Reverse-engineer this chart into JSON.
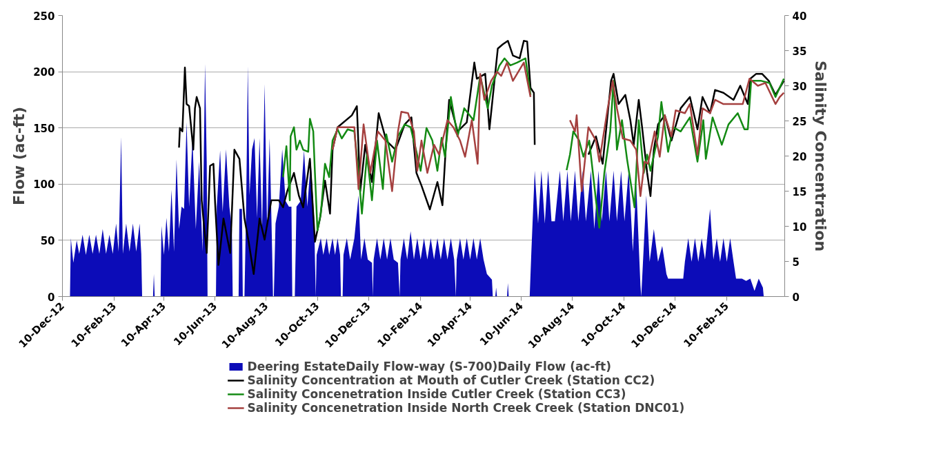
{
  "chart_data": {
    "type": "line",
    "xlim": [
      "2012-12-10",
      "2015-04-20"
    ],
    "xticks": [
      {
        "value": "2012-12-10",
        "label": "10-Dec-12"
      },
      {
        "value": "2013-02-10",
        "label": "10-Feb-13"
      },
      {
        "value": "2013-04-10",
        "label": "10-Apr-13"
      },
      {
        "value": "2013-06-10",
        "label": "10-Jun-13"
      },
      {
        "value": "2013-08-10",
        "label": "10-Aug-13"
      },
      {
        "value": "2013-10-10",
        "label": "10-Oct-13"
      },
      {
        "value": "2013-12-10",
        "label": "10-Dec-13"
      },
      {
        "value": "2014-02-10",
        "label": "10-Feb-14"
      },
      {
        "value": "2014-04-10",
        "label": "10-Apr-14"
      },
      {
        "value": "2014-06-10",
        "label": "10-Jun-14"
      },
      {
        "value": "2014-08-10",
        "label": "10-Aug-14"
      },
      {
        "value": "2014-10-10",
        "label": "10-Oct-14"
      },
      {
        "value": "2014-12-10",
        "label": "10-Dec-14"
      },
      {
        "value": "2015-02-10",
        "label": "10-Feb-15"
      }
    ],
    "ylim": [
      0,
      250
    ],
    "yticks": [
      0,
      50,
      100,
      150,
      200,
      250
    ],
    "y2lim": [
      0,
      40
    ],
    "y2ticks": [
      0,
      5,
      10,
      15,
      20,
      25,
      30,
      35,
      40
    ],
    "ylabel": "Flow (ac-ft)",
    "y2label": "Salinity Concentration",
    "grid": "y",
    "legend": "bottom",
    "series": [
      {
        "name": "Deering EstateDaily Flow-way (S-700)Daily Flow (ac-ft)",
        "type": "area",
        "color": "#0c0cb8",
        "x": [
          "2012-12-19",
          "2012-12-20",
          "2012-12-23",
          "2012-12-27",
          "2012-12-30",
          "2013-01-03",
          "2013-01-07",
          "2013-01-11",
          "2013-01-15",
          "2013-01-19",
          "2013-01-23",
          "2013-01-27",
          "2013-01-31",
          "2013-02-04",
          "2013-02-08",
          "2013-02-12",
          "2013-02-15",
          "2013-02-18",
          "2013-02-20",
          "2013-02-24",
          "2013-02-28",
          "2013-03-04",
          "2013-03-08",
          "2013-03-12",
          "2013-03-14",
          "2013-03-15",
          "2013-03-28",
          "2013-03-29",
          "2013-03-30",
          "2013-04-06",
          "2013-04-07",
          "2013-04-10",
          "2013-04-13",
          "2013-04-16",
          "2013-04-19",
          "2013-04-22",
          "2013-04-25",
          "2013-04-28",
          "2013-05-01",
          "2013-05-04",
          "2013-05-07",
          "2013-05-10",
          "2013-05-14",
          "2013-05-18",
          "2013-05-22",
          "2013-05-26",
          "2013-05-29",
          "2013-05-31",
          "2013-06-01",
          "2013-06-11",
          "2013-06-12",
          "2013-06-16",
          "2013-06-19",
          "2013-06-23",
          "2013-06-27",
          "2013-06-30",
          "2013-07-01",
          "2013-07-08",
          "2013-07-09",
          "2013-07-12",
          "2013-07-13",
          "2013-07-15",
          "2013-07-17",
          "2013-07-19",
          "2013-07-21",
          "2013-07-24",
          "2013-07-27",
          "2013-07-30",
          "2013-08-02",
          "2013-08-05",
          "2013-08-08",
          "2013-08-11",
          "2013-08-14",
          "2013-08-17",
          "2013-08-18",
          "2013-08-19",
          "2013-08-21",
          "2013-08-25",
          "2013-08-29",
          "2013-09-02",
          "2013-09-06",
          "2013-09-09",
          "2013-09-10",
          "2013-09-13",
          "2013-09-15",
          "2013-09-20",
          "2013-09-24",
          "2013-09-28",
          "2013-10-02",
          "2013-10-06",
          "2013-10-08",
          "2013-10-09",
          "2013-10-14",
          "2013-10-17",
          "2013-10-21",
          "2013-10-24",
          "2013-10-28",
          "2013-10-31",
          "2013-11-03",
          "2013-11-06",
          "2013-11-07",
          "2013-11-09",
          "2013-11-10",
          "2013-11-14",
          "2013-11-18",
          "2013-11-23",
          "2013-11-28",
          "2013-12-01",
          "2013-12-05",
          "2013-12-09",
          "2013-12-14",
          "2013-12-15",
          "2013-12-16",
          "2013-12-20",
          "2013-12-24",
          "2013-12-28",
          "2014-01-01",
          "2014-01-05",
          "2014-01-09",
          "2014-01-14",
          "2014-01-16",
          "2014-01-17",
          "2014-01-21",
          "2014-01-25",
          "2014-01-29",
          "2014-02-02",
          "2014-02-06",
          "2014-02-10",
          "2014-02-14",
          "2014-02-18",
          "2014-02-22",
          "2014-02-26",
          "2014-03-02",
          "2014-03-06",
          "2014-03-10",
          "2014-03-14",
          "2014-03-18",
          "2014-03-22",
          "2014-03-24",
          "2014-03-25",
          "2014-03-29",
          "2014-04-02",
          "2014-04-06",
          "2014-04-10",
          "2014-04-14",
          "2014-04-18",
          "2014-04-22",
          "2014-04-26",
          "2014-04-30",
          "2014-05-06",
          "2014-05-07",
          "2014-05-10",
          "2014-05-11",
          "2014-05-12",
          "2014-05-24",
          "2014-05-25",
          "2014-05-26",
          "2014-06-20",
          "2014-06-22",
          "2014-06-26",
          "2014-06-30",
          "2014-07-04",
          "2014-07-08",
          "2014-07-12",
          "2014-07-16",
          "2014-07-20",
          "2014-07-26",
          "2014-07-30",
          "2014-08-04",
          "2014-08-08",
          "2014-08-13",
          "2014-08-17",
          "2014-08-22",
          "2014-08-26",
          "2014-09-01",
          "2014-09-05",
          "2014-09-10",
          "2014-09-14",
          "2014-09-19",
          "2014-09-23",
          "2014-09-28",
          "2014-10-02",
          "2014-10-07",
          "2014-10-11",
          "2014-10-16",
          "2014-10-21",
          "2014-10-25",
          "2014-10-30",
          "2014-10-31",
          "2014-11-02",
          "2014-11-06",
          "2014-11-10",
          "2014-11-15",
          "2014-11-20",
          "2014-11-25",
          "2014-11-30",
          "2014-12-02",
          "2014-12-10",
          "2014-12-20",
          "2014-12-22",
          "2014-12-26",
          "2014-12-30",
          "2015-01-03",
          "2015-01-07",
          "2015-01-11",
          "2015-01-15",
          "2015-01-21",
          "2015-01-25",
          "2015-01-29",
          "2015-02-02",
          "2015-02-06",
          "2015-02-10",
          "2015-02-14",
          "2015-02-18",
          "2015-02-21",
          "2015-02-28",
          "2015-03-05",
          "2015-03-10",
          "2015-03-15",
          "2015-03-20",
          "2015-03-25",
          "2015-03-26"
        ],
        "values": [
          0,
          52,
          30,
          50,
          38,
          55,
          37,
          55,
          38,
          55,
          38,
          60,
          38,
          55,
          38,
          65,
          40,
          142,
          38,
          65,
          40,
          65,
          40,
          65,
          38,
          0,
          0,
          20,
          0,
          0,
          63,
          37,
          70,
          40,
          95,
          40,
          122,
          60,
          80,
          78,
          155,
          80,
          140,
          60,
          120,
          40,
          207,
          120,
          0,
          0,
          80,
          130,
          75,
          131,
          80,
          60,
          0,
          0,
          78,
          78,
          0,
          0,
          80,
          205,
          90,
          131,
          141,
          70,
          141,
          60,
          189,
          60,
          141,
          40,
          0,
          0,
          65,
          80,
          131,
          85,
          80,
          80,
          0,
          0,
          80,
          85,
          130,
          80,
          121,
          70,
          0,
          37,
          52,
          37,
          52,
          37,
          52,
          37,
          52,
          37,
          0,
          0,
          37,
          52,
          33,
          52,
          90,
          33,
          52,
          33,
          30,
          0,
          33,
          52,
          33,
          52,
          33,
          52,
          33,
          30,
          0,
          33,
          52,
          33,
          58,
          33,
          52,
          33,
          52,
          33,
          52,
          33,
          52,
          33,
          52,
          33,
          52,
          33,
          0,
          33,
          52,
          33,
          52,
          33,
          52,
          33,
          52,
          33,
          20,
          15,
          0,
          0,
          8,
          0,
          0,
          12,
          0,
          0,
          40,
          112,
          65,
          112,
          65,
          112,
          67,
          67,
          112,
          67,
          112,
          67,
          112,
          67,
          112,
          67,
          112,
          60,
          112,
          67,
          112,
          67,
          112,
          67,
          112,
          67,
          112,
          40,
          100,
          10,
          0,
          30,
          90,
          31,
          60,
          31,
          45,
          20,
          16,
          16,
          16,
          31,
          52,
          31,
          52,
          31,
          52,
          33,
          78,
          33,
          52,
          31,
          52,
          31,
          52,
          31,
          16,
          16,
          14,
          16,
          5,
          16,
          8,
          0
        ]
      },
      {
        "name": "Salinity Concentration at Mouth of Cutler Creek (Station CC2)",
        "axis": "y2",
        "color": "#000000",
        "x": [
          "2013-04-28",
          "2013-04-29",
          "2013-05-02",
          "2013-05-05",
          "2013-05-07",
          "2013-05-10",
          "2013-05-15",
          "2013-05-17",
          "2013-05-19",
          "2013-05-23",
          "2013-05-25",
          "2013-05-28",
          "2013-05-31",
          "2013-06-04",
          "2013-06-08",
          "2013-06-10",
          "2013-06-14",
          "2013-06-20",
          "2013-06-28",
          "2013-07-03",
          "2013-07-09",
          "2013-07-15",
          "2013-07-20",
          "2013-07-26",
          "2013-08-02",
          "2013-08-08",
          "2013-08-16",
          "2013-08-25",
          "2013-08-30",
          "2013-09-04",
          "2013-09-12",
          "2013-09-18",
          "2013-09-23",
          "2013-10-01",
          "2013-10-07",
          "2013-10-13",
          "2013-10-19",
          "2013-10-25",
          "2013-10-28",
          "2013-11-03",
          "2013-11-20",
          "2013-11-26",
          "2013-11-30",
          "2013-12-06",
          "2013-12-14",
          "2013-12-22",
          "2013-12-31",
          "2014-01-11",
          "2014-01-22",
          "2014-01-30",
          "2014-02-05",
          "2014-02-11",
          "2014-02-21",
          "2014-03-02",
          "2014-03-08",
          "2014-03-12",
          "2014-03-16",
          "2014-03-26",
          "2014-04-06",
          "2014-04-15",
          "2014-04-18",
          "2014-04-28",
          "2014-05-03",
          "2014-05-09",
          "2014-05-13",
          "2014-05-19",
          "2014-05-25",
          "2014-05-31",
          "2014-06-08",
          "2014-06-13",
          "2014-06-17",
          "2014-06-21",
          "2014-06-25",
          "2014-06-26",
          "2014-07-15",
          "2014-08-29",
          "2014-09-07",
          "2014-09-15",
          "2014-09-25",
          "2014-09-28",
          "2014-10-04",
          "2014-10-12",
          "2014-10-18",
          "2014-10-22",
          "2014-10-28",
          "2014-11-01",
          "2014-11-07",
          "2014-11-11",
          "2014-11-15",
          "2014-11-20",
          "2014-11-28",
          "2014-12-06",
          "2014-12-17",
          "2014-12-28",
          "2015-01-06",
          "2015-01-12",
          "2015-01-21",
          "2015-01-27",
          "2015-02-06",
          "2015-02-18",
          "2015-02-26",
          "2015-03-07",
          "2015-03-10",
          "2015-03-17",
          "2015-03-24",
          "2015-04-01",
          "2015-04-09",
          "2015-04-19"
        ],
        "values": [
          21.2,
          24.0,
          23.5,
          32.6,
          27.4,
          27.1,
          20.9,
          26.8,
          28.4,
          26.8,
          13.7,
          9.8,
          6.2,
          18.6,
          18.9,
          13.3,
          4.5,
          11.1,
          6.2,
          20.9,
          19.6,
          11.1,
          7.8,
          3.2,
          11.1,
          8.1,
          13.7,
          13.7,
          12.7,
          15.0,
          17.6,
          14.3,
          12.7,
          19.6,
          7.8,
          11.1,
          16.5,
          11.8,
          20.9,
          24.1,
          25.8,
          27.1,
          15.0,
          21.6,
          16.3,
          26.1,
          22.2,
          20.9,
          24.5,
          25.5,
          17.6,
          15.8,
          12.4,
          16.3,
          13.0,
          21.2,
          28.0,
          23.5,
          24.8,
          33.3,
          31.0,
          31.7,
          23.8,
          30.7,
          35.3,
          35.9,
          36.4,
          34.3,
          33.9,
          36.4,
          36.3,
          29.7,
          29.0,
          21.6,
          null,
          20.2,
          22.8,
          18.9,
          30.7,
          31.7,
          27.4,
          28.7,
          25.1,
          21.6,
          28.0,
          24.1,
          17.6,
          14.3,
          20.9,
          24.5,
          25.8,
          22.2,
          26.8,
          28.4,
          23.8,
          28.4,
          26.1,
          29.4,
          29.0,
          28.0,
          30.0,
          27.4,
          31.0,
          31.7,
          31.7,
          30.7,
          28.7,
          30.7
        ]
      },
      {
        "name": "Salinity Concenetration Inside Cutler Creek (Station CC3)",
        "axis": "y2",
        "color": "#138a13",
        "x": [
          "2013-08-30",
          "2013-09-03",
          "2013-09-07",
          "2013-09-08",
          "2013-09-12",
          "2013-09-15",
          "2013-09-19",
          "2013-09-23",
          "2013-09-29",
          "2013-10-01",
          "2013-10-05",
          "2013-10-07",
          "2013-10-10",
          "2013-10-14",
          "2013-10-19",
          "2013-10-24",
          "2013-10-28",
          "2013-11-03",
          "2013-11-08",
          "2013-11-15",
          "2013-11-23",
          "2013-11-28",
          "2013-12-02",
          "2013-12-08",
          "2013-12-14",
          "2013-12-20",
          "2013-12-27",
          "2013-12-31",
          "2014-01-07",
          "2014-01-14",
          "2014-01-22",
          "2014-01-29",
          "2014-02-05",
          "2014-02-10",
          "2014-02-17",
          "2014-02-24",
          "2014-03-02",
          "2014-03-07",
          "2014-03-11",
          "2014-03-18",
          "2014-03-26",
          "2014-04-03",
          "2014-04-14",
          "2014-04-22",
          "2014-05-01",
          "2014-05-06",
          "2014-05-15",
          "2014-05-21",
          "2014-05-28",
          "2014-06-05",
          "2014-06-15",
          "2014-06-21",
          "2014-07-15",
          "2014-08-03",
          "2014-08-07",
          "2014-08-11",
          "2014-08-18",
          "2014-08-23",
          "2014-08-30",
          "2014-09-07",
          "2014-09-11",
          "2014-09-17",
          "2014-09-24",
          "2014-09-28",
          "2014-10-02",
          "2014-10-08",
          "2014-10-14",
          "2014-10-23",
          "2014-10-28",
          "2014-11-03",
          "2014-11-07",
          "2014-11-11",
          "2014-11-20",
          "2014-11-24",
          "2014-12-02",
          "2014-12-08",
          "2014-12-17",
          "2014-12-28",
          "2015-01-06",
          "2015-01-13",
          "2015-01-16",
          "2015-01-24",
          "2015-02-04",
          "2015-02-12",
          "2015-02-23",
          "2015-03-03",
          "2015-03-07",
          "2015-03-11",
          "2015-03-23",
          "2015-04-02",
          "2015-04-09",
          "2015-04-19"
        ],
        "values": [
          17.0,
          21.4,
          13.7,
          22.8,
          24.1,
          20.9,
          22.2,
          20.9,
          20.6,
          25.3,
          23.5,
          17.6,
          9.4,
          11.8,
          18.9,
          17.0,
          22.2,
          23.8,
          22.5,
          23.8,
          23.5,
          17.6,
          11.8,
          20.2,
          13.7,
          22.2,
          15.3,
          23.1,
          19.2,
          22.8,
          24.5,
          24.1,
          20.6,
          17.9,
          24.0,
          22.2,
          17.9,
          22.6,
          19.9,
          28.4,
          22.8,
          26.8,
          25.1,
          31.4,
          26.8,
          30.0,
          32.9,
          33.9,
          32.9,
          33.3,
          33.9,
          28.7,
          null,
          18.0,
          20.2,
          23.5,
          22.2,
          19.9,
          22.2,
          13.7,
          9.8,
          17.6,
          23.5,
          30.7,
          20.9,
          25.1,
          19.6,
          12.7,
          25.1,
          17.6,
          20.2,
          17.9,
          22.8,
          27.7,
          20.6,
          24.1,
          23.5,
          25.5,
          19.2,
          25.1,
          19.6,
          25.5,
          21.6,
          24.5,
          26.1,
          23.8,
          23.8,
          30.7,
          30.7,
          30.4,
          28.4,
          31.0
        ]
      },
      {
        "name": "Salinity Concenetration Inside North Creek Creek (Station DNC01)",
        "axis": "y2",
        "color": "#a5403f",
        "x": [
          "2013-10-28",
          "2013-11-03",
          "2013-11-15",
          "2013-11-23",
          "2013-11-28",
          "2013-12-04",
          "2013-12-12",
          "2013-12-21",
          "2013-12-30",
          "2014-01-07",
          "2014-01-14",
          "2014-01-18",
          "2014-01-26",
          "2014-02-02",
          "2014-02-06",
          "2014-02-11",
          "2014-02-18",
          "2014-02-26",
          "2014-03-04",
          "2014-03-14",
          "2014-03-21",
          "2014-03-29",
          "2014-04-04",
          "2014-04-12",
          "2014-04-19",
          "2014-04-22",
          "2014-04-27",
          "2014-05-05",
          "2014-05-12",
          "2014-05-17",
          "2014-05-24",
          "2014-05-31",
          "2014-06-05",
          "2014-06-13",
          "2014-06-21",
          "2014-07-15",
          "2014-08-07",
          "2014-08-13",
          "2014-08-15",
          "2014-08-21",
          "2014-08-29",
          "2014-09-07",
          "2014-09-11",
          "2014-09-21",
          "2014-09-27",
          "2014-10-02",
          "2014-10-09",
          "2014-10-18",
          "2014-10-25",
          "2014-10-30",
          "2014-11-04",
          "2014-11-08",
          "2014-11-16",
          "2014-11-22",
          "2014-11-28",
          "2014-12-06",
          "2014-12-11",
          "2014-12-22",
          "2014-12-28",
          "2015-01-06",
          "2015-01-12",
          "2015-01-21",
          "2015-01-27",
          "2015-02-06",
          "2015-02-18",
          "2015-03-01",
          "2015-03-09",
          "2015-03-19",
          "2015-03-28",
          "2015-04-09",
          "2015-04-14",
          "2015-04-19"
        ],
        "values": [
          20.9,
          24.1,
          24.1,
          24.1,
          15.3,
          24.5,
          17.6,
          23.5,
          22.2,
          15.0,
          23.5,
          26.3,
          26.1,
          23.5,
          17.9,
          22.2,
          17.6,
          21.6,
          20.2,
          25.1,
          24.1,
          22.2,
          19.9,
          25.1,
          18.9,
          31.7,
          28.0,
          30.7,
          32.0,
          31.4,
          33.3,
          30.7,
          31.7,
          33.3,
          28.4,
          null,
          25.1,
          23.5,
          25.8,
          15.0,
          24.1,
          22.2,
          19.2,
          26.8,
          30.7,
          26.8,
          22.5,
          22.2,
          20.9,
          14.3,
          19.2,
          18.9,
          23.5,
          19.9,
          25.8,
          22.8,
          26.5,
          26.1,
          27.4,
          20.2,
          26.8,
          26.1,
          28.0,
          27.4,
          27.4,
          27.4,
          31.0,
          30.0,
          30.4,
          27.4,
          28.4,
          29.0
        ]
      }
    ]
  }
}
